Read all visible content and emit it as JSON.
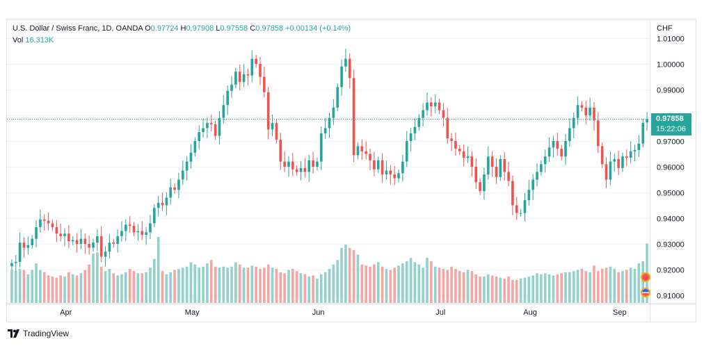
{
  "header": {
    "symbol": "U.S. Dollar / Swiss Franc, 1D, OANDA",
    "open_label": "O",
    "open": "0.97724",
    "high_label": "H",
    "high": "0.97908",
    "low_label": "L",
    "low": "0.97558",
    "close_label": "C",
    "close": "0.97858",
    "change": "+0.00134 (+0.14%)",
    "vol_label": "Vol",
    "vol": "16.313K"
  },
  "price_axis": {
    "currency": "CHF",
    "ticks": [
      "1.01000",
      "1.00000",
      "0.99000",
      "0.98000",
      "0.97000",
      "0.96000",
      "0.95000",
      "0.94000",
      "0.93000",
      "0.92000",
      "0.91000"
    ],
    "tick_values": [
      1.01,
      1.0,
      0.99,
      0.98,
      0.97,
      0.96,
      0.95,
      0.94,
      0.93,
      0.92,
      0.91
    ],
    "last_price": "0.97858",
    "countdown": "15:22:06"
  },
  "time_axis": {
    "labels": [
      "Apr",
      "May",
      "Jun",
      "Jul",
      "Aug",
      "Sep"
    ]
  },
  "colors": {
    "up": "#26a69a",
    "down": "#ef5350",
    "vol_up": "#94d1cb",
    "vol_down": "#f5a6a4",
    "grid": "#f0f3fa",
    "border": "#e0e3eb"
  },
  "footer": {
    "brand": "TradingView"
  },
  "chart_data": {
    "type": "candlestick",
    "title": "U.S. Dollar / Swiss Franc, 1D, OANDA",
    "ylim": [
      0.9065,
      1.0115
    ],
    "grid": true,
    "x_start": "2022-03-11",
    "x_labels": [
      "Apr",
      "May",
      "Jun",
      "Jul",
      "Aug",
      "Sep"
    ],
    "close": [
      0.9225,
      0.923,
      0.9305,
      0.9285,
      0.9295,
      0.932,
      0.9365,
      0.9395,
      0.939,
      0.938,
      0.9365,
      0.934,
      0.933,
      0.934,
      0.931,
      0.9315,
      0.93,
      0.932,
      0.93,
      0.9285,
      0.9305,
      0.933,
      0.925,
      0.927,
      0.9305,
      0.93,
      0.933,
      0.935,
      0.9375,
      0.937,
      0.9345,
      0.935,
      0.9335,
      0.9345,
      0.938,
      0.944,
      0.946,
      0.945,
      0.948,
      0.952,
      0.951,
      0.955,
      0.9585,
      0.962,
      0.9655,
      0.97,
      0.9735,
      0.975,
      0.977,
      0.9765,
      0.972,
      0.979,
      0.984,
      0.9895,
      0.992,
      0.997,
      0.993,
      0.996,
      0.9955,
      1.002,
      1.0,
      0.995,
      0.989,
      0.9745,
      0.977,
      0.9705,
      0.962,
      0.96,
      0.962,
      0.959,
      0.958,
      0.9595,
      0.958,
      0.9625,
      0.96,
      0.962,
      0.973,
      0.975,
      0.979,
      0.983,
      0.991,
      0.999,
      1.002,
      0.9945,
      0.9645,
      0.968,
      0.966,
      0.965,
      0.9625,
      0.959,
      0.9625,
      0.957,
      0.9585,
      0.957,
      0.9555,
      0.9575,
      0.962,
      0.97,
      0.973,
      0.9755,
      0.979,
      0.982,
      0.985,
      0.9835,
      0.985,
      0.982,
      0.979,
      0.971,
      0.97,
      0.967,
      0.966,
      0.9635,
      0.964,
      0.96,
      0.954,
      0.9505,
      0.957,
      0.964,
      0.96,
      0.956,
      0.963,
      0.958,
      0.9545,
      0.945,
      0.942,
      0.942,
      0.947,
      0.951,
      0.955,
      0.958,
      0.961,
      0.964,
      0.9675,
      0.97,
      0.967,
      0.964,
      0.97,
      0.975,
      0.979,
      0.984,
      0.983,
      0.98,
      0.983,
      0.978,
      0.968,
      0.961,
      0.955,
      0.962,
      0.963,
      0.9595,
      0.964,
      0.9635,
      0.966,
      0.9665,
      0.969,
      0.977,
      0.9786
    ],
    "volume": [
      60,
      58,
      62,
      60,
      52,
      60,
      72,
      60,
      56,
      50,
      48,
      46,
      50,
      48,
      56,
      52,
      50,
      54,
      60,
      70,
      90,
      92,
      66,
      58,
      62,
      54,
      50,
      52,
      56,
      62,
      58,
      54,
      54,
      56,
      64,
      80,
      120,
      58,
      52,
      56,
      60,
      62,
      64,
      66,
      74,
      70,
      64,
      66,
      72,
      78,
      66,
      64,
      66,
      64,
      66,
      74,
      70,
      64,
      64,
      68,
      66,
      62,
      64,
      70,
      64,
      62,
      56,
      54,
      60,
      62,
      58,
      54,
      52,
      48,
      50,
      44,
      52,
      56,
      62,
      70,
      78,
      100,
      106,
      100,
      96,
      88,
      70,
      68,
      66,
      70,
      74,
      66,
      62,
      60,
      64,
      68,
      72,
      76,
      82,
      74,
      70,
      64,
      82,
      76,
      66,
      64,
      62,
      60,
      66,
      62,
      58,
      56,
      60,
      58,
      52,
      48,
      48,
      52,
      50,
      48,
      46,
      44,
      48,
      42,
      42,
      44,
      46,
      48,
      50,
      54,
      52,
      54,
      52,
      50,
      52,
      54,
      56,
      56,
      58,
      60,
      62,
      58,
      56,
      68,
      58,
      62,
      64,
      66,
      62,
      56,
      58,
      60,
      64,
      62,
      72,
      76,
      108
    ],
    "last": 0.97858
  }
}
